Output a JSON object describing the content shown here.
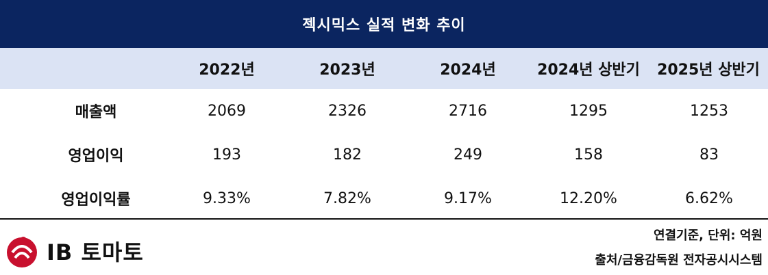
{
  "chart_data": {
    "type": "table",
    "title": "젝시믹스 실적 변화 추이",
    "columns": [
      "2022년",
      "2023년",
      "2024년",
      "2024년 상반기",
      "2025년 상반기"
    ],
    "rows": [
      {
        "label": "매출액",
        "values": [
          "2069",
          "2326",
          "2716",
          "1295",
          "1253"
        ]
      },
      {
        "label": "영업이익",
        "values": [
          "193",
          "182",
          "249",
          "158",
          "83"
        ]
      },
      {
        "label": "영업이익률",
        "values": [
          "9.33%",
          "7.82%",
          "9.17%",
          "12.20%",
          "6.62%"
        ]
      }
    ]
  },
  "footer": {
    "unit_note": "연결기준, 단위: 억원",
    "source_note": "출처/금융감독원 전자공시시스템"
  },
  "logo": {
    "text": "IB 토마토",
    "color": "#c8102e"
  },
  "colors": {
    "title_bg": "#0b2560",
    "header_bg": "#dbe3f4"
  }
}
